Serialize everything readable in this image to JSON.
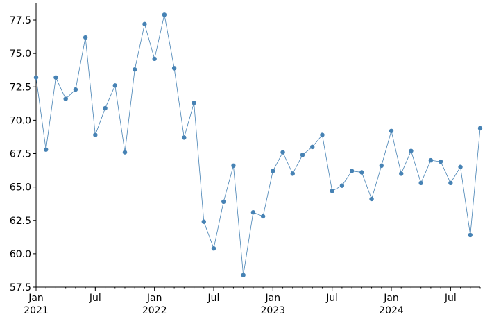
{
  "chart_data": {
    "type": "line",
    "title": "",
    "xlabel": "",
    "ylabel": "",
    "x_start": "2021-01",
    "x": [
      "2021-01",
      "2021-02",
      "2021-03",
      "2021-04",
      "2021-05",
      "2021-06",
      "2021-07",
      "2021-08",
      "2021-09",
      "2021-10",
      "2021-11",
      "2021-12",
      "2022-01",
      "2022-02",
      "2022-03",
      "2022-04",
      "2022-05",
      "2022-06",
      "2022-07",
      "2022-08",
      "2022-09",
      "2022-10",
      "2022-11",
      "2022-12",
      "2023-01",
      "2023-02",
      "2023-03",
      "2023-04",
      "2023-05",
      "2023-06",
      "2023-07",
      "2023-08",
      "2023-09",
      "2023-10",
      "2023-11",
      "2023-12",
      "2024-01",
      "2024-02",
      "2024-03",
      "2024-04",
      "2024-05",
      "2024-06",
      "2024-07",
      "2024-08",
      "2024-09",
      "2024-10"
    ],
    "series": [
      {
        "values": [
          73.2,
          67.8,
          73.2,
          71.6,
          72.3,
          76.2,
          68.9,
          70.9,
          72.6,
          67.6,
          73.8,
          77.2,
          74.6,
          77.9,
          73.9,
          68.7,
          71.3,
          62.4,
          60.4,
          63.9,
          66.6,
          58.4,
          63.1,
          62.8,
          66.2,
          67.6,
          66.0,
          67.4,
          68.0,
          68.9,
          64.7,
          65.1,
          66.2,
          66.1,
          64.1,
          66.6,
          69.2,
          66.0,
          67.7,
          65.3,
          67.0,
          66.9,
          65.3,
          66.5,
          61.4,
          69.4
        ],
        "color": "#4682b4"
      }
    ],
    "ylim": [
      57.5,
      78.8
    ],
    "y_ticks": [
      "57.5",
      "60.0",
      "62.5",
      "65.0",
      "67.5",
      "70.0",
      "72.5",
      "75.0",
      "77.5"
    ],
    "x_tick_labels": [
      {
        "month_index": 0,
        "label": "Jan",
        "sub": "2021"
      },
      {
        "month_index": 6,
        "label": "Jul",
        "sub": ""
      },
      {
        "month_index": 12,
        "label": "Jan",
        "sub": "2022"
      },
      {
        "month_index": 18,
        "label": "Jul",
        "sub": ""
      },
      {
        "month_index": 24,
        "label": "Jan",
        "sub": "2023"
      },
      {
        "month_index": 30,
        "label": "Jul",
        "sub": ""
      },
      {
        "month_index": 36,
        "label": "Jan",
        "sub": "2024"
      },
      {
        "month_index": 42,
        "label": "Jul",
        "sub": ""
      }
    ],
    "grid": false,
    "legend": "none"
  }
}
